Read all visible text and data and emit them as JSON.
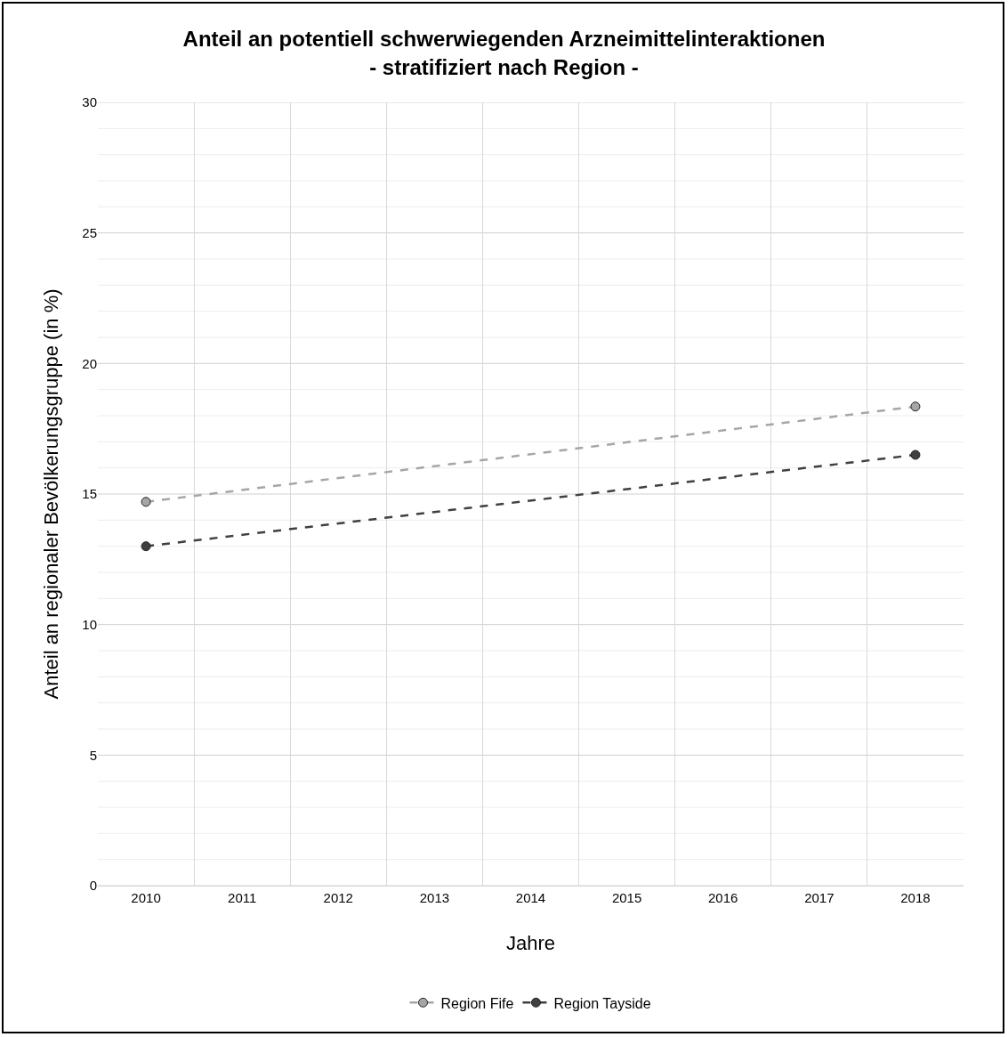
{
  "chart_data": {
    "type": "line",
    "title": "Anteil an potentiell schwerwiegenden Arzneimittelinteraktionen\n- stratifiziert nach Region -",
    "xlabel": "Jahre",
    "ylabel": "Anteil an regionaler Bevölkerungsgruppe (in %)",
    "categories": [
      "2010",
      "2011",
      "2012",
      "2013",
      "2014",
      "2015",
      "2016",
      "2017",
      "2018"
    ],
    "series": [
      {
        "name": "Region Fife",
        "color": "#a6a6a6",
        "values": [
          14.7,
          null,
          null,
          null,
          null,
          null,
          null,
          null,
          18.35
        ]
      },
      {
        "name": "Region Tayside",
        "color": "#404040",
        "values": [
          13.0,
          null,
          null,
          null,
          null,
          null,
          null,
          null,
          16.5
        ]
      }
    ],
    "ylim": [
      0,
      30
    ],
    "yticks": [
      0,
      {
        "value": 1,
        "label": null
      },
      {
        "value": 2,
        "label": null
      },
      {
        "value": 3,
        "label": null
      },
      {
        "value": 4,
        "label": null
      },
      5,
      {
        "value": 6,
        "label": null
      },
      {
        "value": 7,
        "label": null
      },
      {
        "value": 8,
        "label": null
      },
      {
        "value": 9,
        "label": null
      },
      10,
      {
        "value": 11,
        "label": null
      },
      {
        "value": 12,
        "label": null
      },
      {
        "value": 13,
        "label": null
      },
      {
        "value": 14,
        "label": null
      },
      15,
      {
        "value": 16,
        "label": null
      },
      {
        "value": 17,
        "label": null
      },
      {
        "value": 18,
        "label": null
      },
      {
        "value": 19,
        "label": null
      },
      20,
      {
        "value": 21,
        "label": null
      },
      {
        "value": 22,
        "label": null
      },
      {
        "value": 23,
        "label": null
      },
      {
        "value": 24,
        "label": null
      },
      25,
      {
        "value": 26,
        "label": null
      },
      {
        "value": 27,
        "label": null
      },
      {
        "value": 28,
        "label": null
      },
      {
        "value": 29,
        "label": null
      },
      30
    ],
    "grid": true,
    "legend": "bottom",
    "marker": "circle",
    "line_style": "dashed"
  }
}
